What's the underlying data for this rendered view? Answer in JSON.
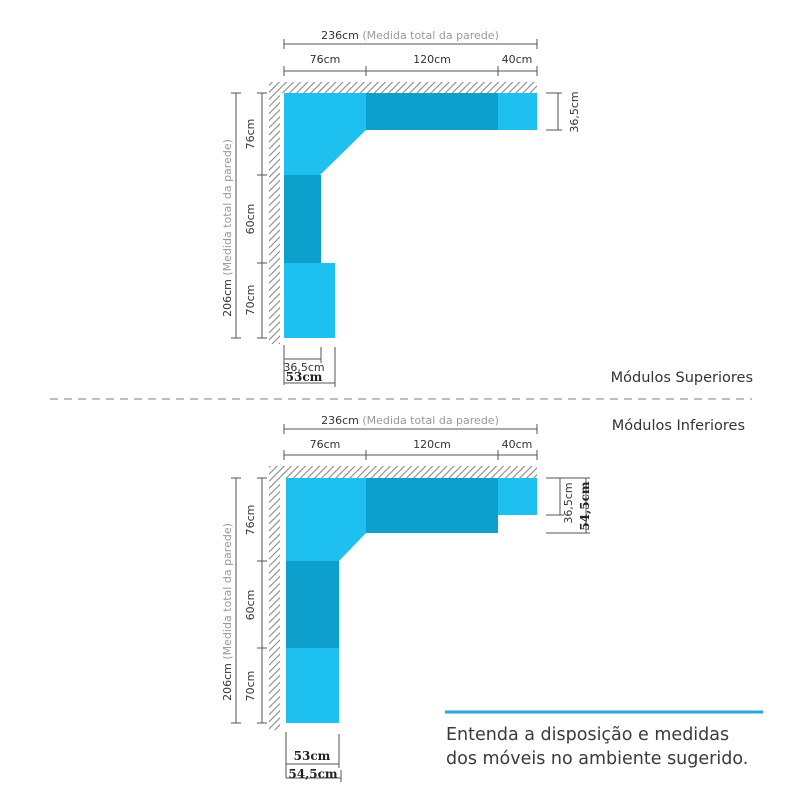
{
  "colors": {
    "module_light": "#1ec0ef",
    "module_dark": "#0ea0cc",
    "wall_hatch": "#8a8a8a",
    "caption_accent": "#2aa7d6",
    "divider": "#9a9a9a"
  },
  "upper": {
    "section_label": "Módulos Superiores",
    "total_width_value": "236cm",
    "total_width_note": "(Medida total da parede)",
    "seg_left": "76cm",
    "seg_mid": "120cm",
    "seg_right": "40cm",
    "right_depth": "36,5cm",
    "total_height_value": "206cm",
    "total_height_note": "(Medida total da parede)",
    "seg_top": "76cm",
    "seg_center": "60cm",
    "seg_bottom": "70cm",
    "bottom_depth_small": "36,5cm",
    "bottom_depth_large": "53cm"
  },
  "lower": {
    "section_label": "Módulos Inferiores",
    "total_width_value": "236cm",
    "total_width_note": "(Medida total da parede)",
    "seg_left": "76cm",
    "seg_mid": "120cm",
    "seg_right": "40cm",
    "right_depth_small": "36,5cm",
    "right_depth_large": "54,5cm",
    "total_height_value": "206cm",
    "total_height_note": "(Medida total da parede)",
    "seg_top": "76cm",
    "seg_center": "60cm",
    "seg_bottom": "70cm",
    "bottom_depth_small": "53cm",
    "bottom_depth_large": "54,5cm"
  },
  "caption": {
    "line1": "Entenda a disposição e medidas",
    "line2": "dos móveis no ambiente sugerido."
  }
}
